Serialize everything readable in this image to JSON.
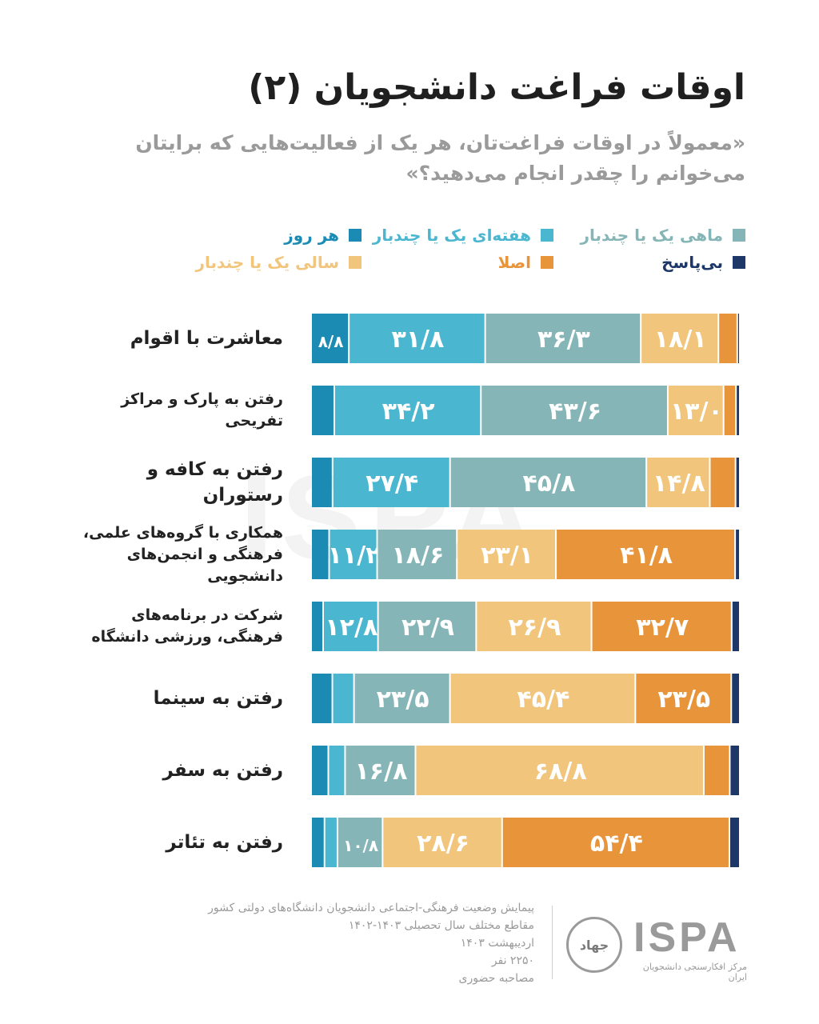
{
  "header": {
    "title": "اوقات فراغت دانشجویان (۲)",
    "subtitle": "«معمولاً در اوقات فراغت‌تان، هر یک از فعالیت‌هایی که برایتان می‌خوانم را چقدر انجام می‌دهید؟»"
  },
  "colors": {
    "har_rooz": "#1b8bb4",
    "hafte": "#4bb6cf",
    "mahi": "#85b5b6",
    "sali": "#f2c57c",
    "asla": "#e8943a",
    "bipasokh": "#1d3868"
  },
  "chart_data": {
    "type": "bar",
    "orientation": "horizontal",
    "stacked": true,
    "xlim": [
      0,
      100
    ],
    "legend_placement": "top",
    "categories": [
      "معاشرت با اقوام",
      "رفتن به پارک و مراکز تفریحی",
      "رفتن به کافه و رستوران",
      "همکاری با گروه‌های علمی، فرهنگی و انجمن‌های دانشجویی",
      "شرکت در برنامه‌های فرهنگی، ورزشی دانشگاه",
      "رفتن به سینما",
      "رفتن به سفر",
      "رفتن به تئاتر"
    ],
    "series": [
      {
        "name": "هر روز",
        "color": "#1b8bb4",
        "values": [
          8.8,
          5.4,
          5.0,
          4.2,
          2.8,
          5.2,
          4.1,
          3.2
        ],
        "labels": [
          "۸/۸",
          "",
          "",
          "",
          "",
          "",
          "",
          ""
        ]
      },
      {
        "name": "هفته‌ای یک یا چندبار",
        "color": "#4bb6cf",
        "values": [
          31.8,
          34.2,
          27.4,
          11.2,
          12.8,
          5.3,
          4.0,
          3.1
        ],
        "labels": [
          "۳۱/۸",
          "۳۴/۲",
          "۲۷/۴",
          "۱۱/۲",
          "۱۲/۸",
          "",
          "",
          ""
        ]
      },
      {
        "name": "ماهی یک یا چندبار",
        "color": "#85b5b6",
        "values": [
          36.3,
          43.6,
          45.8,
          18.6,
          22.9,
          23.5,
          16.8,
          10.8
        ],
        "labels": [
          "۳۶/۳",
          "۴۳/۶",
          "۴۵/۸",
          "۱۸/۶",
          "۲۲/۹",
          "۲۳/۵",
          "۱۶/۸",
          "۱۰/۸"
        ]
      },
      {
        "name": "سالی یک یا چندبار",
        "color": "#f2c57c",
        "values": [
          18.1,
          13.0,
          14.8,
          23.1,
          26.9,
          45.4,
          68.8,
          28.6
        ],
        "labels": [
          "۱۸/۱",
          "۱۳/۰",
          "۱۴/۸",
          "۲۳/۱",
          "۲۶/۹",
          "۴۵/۴",
          "۶۸/۸",
          "۲۸/۶"
        ]
      },
      {
        "name": "اصلا",
        "color": "#e8943a",
        "values": [
          4.4,
          2.9,
          6.0,
          41.8,
          32.7,
          23.5,
          6.2,
          54.4
        ],
        "labels": [
          "",
          "",
          "",
          "۴۱/۸",
          "۳۲/۷",
          "۲۳/۵",
          "",
          "۵۴/۴"
        ]
      },
      {
        "name": "بی‌پاسخ",
        "color": "#1d3868",
        "values": [
          0.6,
          0.9,
          1.0,
          1.1,
          1.9,
          2.1,
          2.4,
          2.5
        ],
        "labels": [
          "",
          "",
          "",
          "",
          "",
          "",
          "",
          ""
        ]
      }
    ]
  },
  "footer": {
    "lines": [
      "پیمایش وضعیت فرهنگی-اجتماعی دانشجویان دانشگاه‌های دولتی کشور",
      "مقاطع مختلف سال تحصیلی ۱۴۰۳-۱۴۰۲",
      "اردیبهشت ۱۴۰۳",
      "۲۲۵۰ نفر",
      "مصاحبه حضوری"
    ],
    "logo_text": "ISPA",
    "logo_subtitle": "مرکز افکارسنجی دانشجویان ایران",
    "seal_text": "جهاد",
    "seal_icon": "jahad-seal-icon"
  },
  "watermark": "ISPA"
}
